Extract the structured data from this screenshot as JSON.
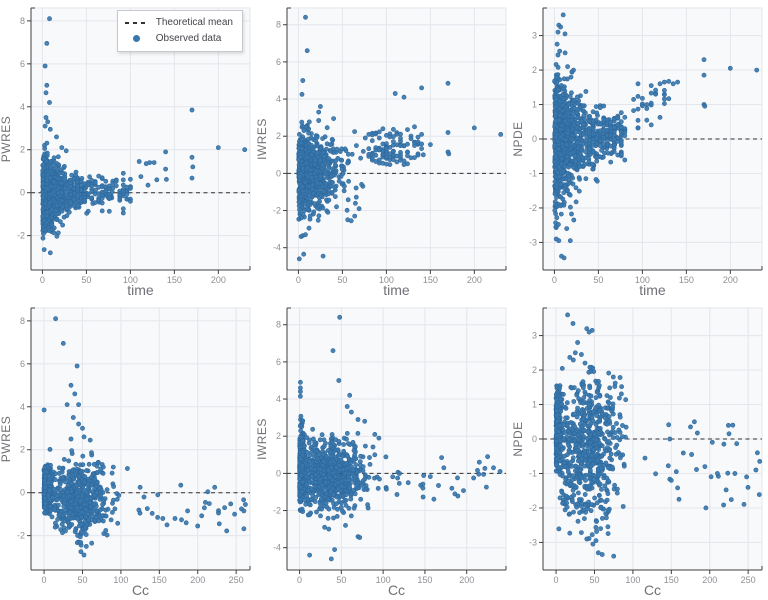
{
  "legend": {
    "position": "top-right-of-first-plot",
    "items": [
      {
        "label": "Theoretical mean",
        "type": "dash"
      },
      {
        "label": "Observed data",
        "type": "dot"
      }
    ]
  },
  "style": {
    "marker_fill": "#3878ad",
    "marker_stroke": "#2e679c",
    "marker_radius": 2.1,
    "panel_bg": "#f8f9fb",
    "panel_border": "#e4e6eb",
    "grid": "#e4e6eb",
    "axis": "#3f3f41",
    "tick_text": "#8f8f95",
    "axis_title_text": "#707076",
    "dash_line": "#2e2e30",
    "legend_border": "#c7c9cf",
    "legend_text": "#43434a"
  },
  "chart_data": [
    {
      "type": "scatter",
      "xlabel": "time",
      "ylabel": "PWRES",
      "xlim": [
        -13,
        236
      ],
      "ylim": [
        -3.6,
        8.6
      ],
      "xticks": [
        0,
        50,
        100,
        150,
        200
      ],
      "yticks": [
        -2,
        0,
        2,
        4,
        6,
        8
      ],
      "hline": 0,
      "grid": true,
      "seed": 11,
      "clusters": [
        {
          "n": 900,
          "x": [
            "exp",
            13
          ],
          "xmin": 0.3,
          "xmax": 104,
          "ycenter": -0.08,
          "ysd": 0.75,
          "ydecay": 36,
          "ysdmin": 0.15,
          "yclip": [
            -2.6,
            2.95
          ]
        },
        {
          "n": 120,
          "x": [
            "uniform",
            30,
            102
          ],
          "xquant": 4,
          "ycenter": 0.05,
          "ysd": 0.38,
          "yclip": [
            -0.95,
            1.25
          ]
        }
      ],
      "points": [
        [
          8,
          8.1
        ],
        [
          5,
          6.95
        ],
        [
          3,
          5.9
        ],
        [
          5,
          5.0
        ],
        [
          4,
          4.65
        ],
        [
          8,
          4.2
        ],
        [
          4,
          3.5
        ],
        [
          6,
          3.3
        ],
        [
          3,
          3.1
        ],
        [
          9,
          2.95
        ],
        [
          16,
          2.6
        ],
        [
          22,
          2.1
        ],
        [
          27,
          1.95
        ],
        [
          2,
          -2.65
        ],
        [
          9,
          -2.8
        ],
        [
          110,
          1.45
        ],
        [
          112,
          0.75
        ],
        [
          118,
          1.35
        ],
        [
          120,
          0.35
        ],
        [
          122,
          1.4
        ],
        [
          127,
          1.4
        ],
        [
          130,
          0.6
        ],
        [
          140,
          1.9
        ],
        [
          140,
          1.1
        ],
        [
          141,
          0.62
        ],
        [
          170,
          3.85
        ],
        [
          170,
          1.65
        ],
        [
          171,
          1.2
        ],
        [
          170,
          0.68
        ],
        [
          200,
          2.1
        ],
        [
          230,
          2.0
        ]
      ]
    },
    {
      "type": "scatter",
      "xlabel": "time",
      "ylabel": "IWRES",
      "xlim": [
        -13,
        236
      ],
      "ylim": [
        -5.2,
        8.9
      ],
      "xticks": [
        0,
        50,
        100,
        150,
        200
      ],
      "yticks": [
        -4,
        -2,
        0,
        2,
        4,
        6,
        8
      ],
      "hline": 0,
      "grid": true,
      "seed": 22,
      "clusters": [
        {
          "n": 950,
          "x": [
            "exp",
            15
          ],
          "xmin": 0.3,
          "xmax": 76,
          "ycenter": 0.05,
          "ysd": 0.98,
          "yclip": [
            -2.55,
            3.05
          ]
        },
        {
          "n": 80,
          "x": [
            "uniform",
            76,
            140
          ],
          "xquant": 4,
          "ycenter": 1.3,
          "ysd": 0.62,
          "yclip": [
            0.45,
            2.6
          ]
        },
        {
          "n": 26,
          "x": [
            "uniform",
            80,
            130
          ],
          "xquant": 4,
          "ycenter": 0.85,
          "ysd": 0.3,
          "yclip": [
            0.45,
            1.5
          ]
        }
      ],
      "points": [
        [
          8,
          8.4
        ],
        [
          10,
          6.6
        ],
        [
          5,
          5.0
        ],
        [
          4,
          4.25
        ],
        [
          25,
          3.6
        ],
        [
          23,
          3.3
        ],
        [
          40,
          2.95
        ],
        [
          1,
          -4.6
        ],
        [
          6,
          -4.35
        ],
        [
          28,
          -4.45
        ],
        [
          3,
          -3.4
        ],
        [
          5,
          -3.35
        ],
        [
          8,
          -3.3
        ],
        [
          12,
          -2.95
        ],
        [
          56,
          -2.5
        ],
        [
          60,
          -2.55
        ],
        [
          64,
          -2.3
        ],
        [
          69,
          -1.9
        ],
        [
          110,
          4.3
        ],
        [
          120,
          4.1
        ],
        [
          140,
          4.6
        ],
        [
          170,
          4.85
        ],
        [
          140,
          2.1
        ],
        [
          142,
          1.0
        ],
        [
          150,
          1.55
        ],
        [
          170,
          2.2
        ],
        [
          170,
          1.15
        ],
        [
          171,
          1.05
        ],
        [
          200,
          2.45
        ],
        [
          230,
          2.1
        ]
      ]
    },
    {
      "type": "scatter",
      "xlabel": "time",
      "ylabel": "NPDE",
      "xlim": [
        -13,
        236
      ],
      "ylim": [
        -3.8,
        3.8
      ],
      "xticks": [
        0,
        50,
        100,
        150,
        200
      ],
      "yticks": [
        -3,
        -2,
        -1,
        0,
        1,
        2,
        3
      ],
      "hline": 0,
      "grid": true,
      "seed": 33,
      "clusters": [
        {
          "n": 1000,
          "x": [
            "exp",
            14
          ],
          "xmin": 0.3,
          "xmax": 82,
          "ycenter": -0.02,
          "ysd": 0.8,
          "ydecay": 45,
          "ysdmin": 0.18,
          "yclip": [
            -2.75,
            2.5
          ]
        },
        {
          "n": 130,
          "x": [
            "uniform",
            38,
            82
          ],
          "xquant": 4,
          "ycenter": 0.12,
          "ysd": 0.42,
          "yclip": [
            -0.75,
            1.0
          ]
        },
        {
          "n": 26,
          "x": [
            "uniform",
            85,
            132
          ],
          "xquant": 5,
          "ycenter": 0.95,
          "ysd": 0.4,
          "yclip": [
            0.3,
            1.7
          ]
        }
      ],
      "points": [
        [
          10,
          3.6
        ],
        [
          5,
          3.3
        ],
        [
          7,
          3.25
        ],
        [
          4,
          3.1
        ],
        [
          12,
          3.05
        ],
        [
          3,
          2.75
        ],
        [
          6,
          2.55
        ],
        [
          15,
          2.1
        ],
        [
          20,
          1.95
        ],
        [
          8,
          -3.4
        ],
        [
          11,
          -3.45
        ],
        [
          5,
          -2.95
        ],
        [
          2,
          -2.9
        ],
        [
          18,
          -2.95
        ],
        [
          14,
          -2.6
        ],
        [
          22,
          -2.35
        ],
        [
          90,
          1.15
        ],
        [
          95,
          0.32
        ],
        [
          110,
          1.55
        ],
        [
          115,
          1.3
        ],
        [
          120,
          1.6
        ],
        [
          125,
          1.65
        ],
        [
          135,
          1.6
        ],
        [
          140,
          1.65
        ],
        [
          170,
          2.3
        ],
        [
          170,
          1.85
        ],
        [
          170,
          1.0
        ],
        [
          171,
          0.95
        ],
        [
          200,
          2.05
        ],
        [
          230,
          2.0
        ]
      ]
    },
    {
      "type": "scatter",
      "xlabel": "Cc",
      "ylabel": "PWRES",
      "xlim": [
        -17,
        268
      ],
      "ylim": [
        -3.6,
        8.6
      ],
      "xticks": [
        0,
        50,
        100,
        150,
        200,
        250
      ],
      "yticks": [
        -2,
        0,
        2,
        4,
        6,
        8
      ],
      "hline": 0,
      "grid": true,
      "seed": 44,
      "clusters": [
        {
          "n": 420,
          "x": [
            "absnormal",
            4.5
          ],
          "xmin": 0,
          "xmax": 13,
          "ycenter": 0.12,
          "ysd": 0.55,
          "yclip": [
            -1.0,
            1.3
          ]
        },
        {
          "n": 520,
          "x": [
            "normal",
            45,
            22
          ],
          "xmin": 4,
          "xmax": 112,
          "ycenter": -0.35,
          "ysd": 0.82,
          "yclip": [
            -2.45,
            2.5
          ]
        },
        {
          "n": 20,
          "x": [
            "uniform",
            115,
            265
          ],
          "ycenter": -0.85,
          "ysd": 0.55,
          "yclip": [
            -1.8,
            0.4
          ]
        }
      ],
      "points": [
        [
          15,
          8.1
        ],
        [
          25,
          6.95
        ],
        [
          43,
          5.9
        ],
        [
          35,
          5.0
        ],
        [
          40,
          4.6
        ],
        [
          45,
          4.1
        ],
        [
          30,
          4.1
        ],
        [
          0,
          3.85
        ],
        [
          38,
          3.5
        ],
        [
          45,
          3.2
        ],
        [
          50,
          3.0
        ],
        [
          52,
          2.6
        ],
        [
          60,
          2.45
        ],
        [
          35,
          2.5
        ],
        [
          48,
          -2.75
        ],
        [
          52,
          -2.9
        ],
        [
          55,
          -2.5
        ],
        [
          62,
          -2.35
        ],
        [
          125,
          0.25
        ],
        [
          130,
          -0.2
        ],
        [
          148,
          -0.1
        ],
        [
          160,
          -1.5
        ],
        [
          178,
          0.35
        ],
        [
          185,
          -1.4
        ],
        [
          200,
          -1.55
        ],
        [
          210,
          -0.45
        ],
        [
          222,
          0.25
        ],
        [
          228,
          -1.45
        ],
        [
          235,
          -0.7
        ],
        [
          248,
          -1.0
        ],
        [
          260,
          -0.85
        ],
        [
          262,
          -0.55
        ]
      ]
    },
    {
      "type": "scatter",
      "xlabel": "Cc",
      "ylabel": "IWRES",
      "xlim": [
        -15,
        247
      ],
      "ylim": [
        -5.2,
        8.9
      ],
      "xticks": [
        0,
        50,
        100,
        150,
        200
      ],
      "yticks": [
        -4,
        -2,
        0,
        2,
        4,
        6,
        8
      ],
      "hline": 0,
      "grid": true,
      "seed": 55,
      "clusters": [
        {
          "n": 300,
          "x": [
            "absnormal",
            3
          ],
          "xmin": 0,
          "xmax": 8,
          "ycenter": 0.35,
          "ysd": 1.05,
          "yclip": [
            -2.1,
            3.1
          ]
        },
        {
          "n": 680,
          "x": [
            "normal",
            35,
            22
          ],
          "xmin": 2,
          "xmax": 100,
          "ycenter": -0.1,
          "ysd": 0.95,
          "yclip": [
            -2.6,
            2.6
          ]
        },
        {
          "n": 30,
          "x": [
            "uniform",
            100,
            238
          ],
          "ycenter": -0.45,
          "ysd": 0.5,
          "yclip": [
            -1.5,
            0.9
          ]
        }
      ],
      "points": [
        [
          48,
          8.4
        ],
        [
          40,
          6.6
        ],
        [
          47,
          5.0
        ],
        [
          1,
          4.9
        ],
        [
          1,
          4.6
        ],
        [
          1,
          4.4
        ],
        [
          1,
          4.15
        ],
        [
          60,
          4.2
        ],
        [
          57,
          3.6
        ],
        [
          62,
          3.3
        ],
        [
          70,
          2.9
        ],
        [
          78,
          2.8
        ],
        [
          12,
          -4.4
        ],
        [
          38,
          -4.6
        ],
        [
          42,
          -4.1
        ],
        [
          70,
          -3.4
        ],
        [
          72,
          -3.45
        ],
        [
          35,
          -3.0
        ],
        [
          30,
          -2.9
        ],
        [
          55,
          -2.8
        ],
        [
          90,
          2.1
        ],
        [
          95,
          1.9
        ],
        [
          170,
          0.85
        ],
        [
          225,
          0.9
        ],
        [
          215,
          0.6
        ],
        [
          232,
          0.3
        ],
        [
          240,
          0.1
        ]
      ]
    },
    {
      "type": "scatter",
      "xlabel": "Cc",
      "ylabel": "NPDE",
      "xlim": [
        -17,
        268
      ],
      "ylim": [
        -3.8,
        3.8
      ],
      "xticks": [
        0,
        50,
        100,
        150,
        200,
        250
      ],
      "yticks": [
        -3,
        -2,
        -1,
        0,
        1,
        2,
        3
      ],
      "hline": 0,
      "grid": true,
      "seed": 66,
      "clusters": [
        {
          "n": 360,
          "x": [
            "absnormal",
            3
          ],
          "xmin": 0,
          "xmax": 8,
          "ycenter": 0.3,
          "ysd": 0.62,
          "yclip": [
            -0.95,
            1.55
          ]
        },
        {
          "n": 640,
          "x": [
            "normal",
            42,
            22
          ],
          "xmin": 3,
          "xmax": 105,
          "ycenter": -0.3,
          "ysd": 1.12,
          "yclip": [
            -2.9,
            2.45
          ]
        },
        {
          "n": 26,
          "x": [
            "uniform",
            108,
            265
          ],
          "ycenter": -0.8,
          "ysd": 0.72,
          "yclip": [
            -2.05,
            0.5
          ]
        }
      ],
      "points": [
        [
          15,
          3.6
        ],
        [
          22,
          3.35
        ],
        [
          40,
          3.2
        ],
        [
          47,
          3.15
        ],
        [
          43,
          3.1
        ],
        [
          28,
          2.8
        ],
        [
          25,
          2.5
        ],
        [
          33,
          2.45
        ],
        [
          55,
          -3.3
        ],
        [
          60,
          -3.35
        ],
        [
          75,
          -3.4
        ],
        [
          48,
          -3.05
        ],
        [
          52,
          -2.95
        ],
        [
          40,
          -2.9
        ],
        [
          58,
          -2.6
        ],
        [
          148,
          0.0
        ],
        [
          150,
          -1.2
        ],
        [
          160,
          -1.75
        ],
        [
          175,
          0.35
        ],
        [
          180,
          0.5
        ],
        [
          195,
          -2.0
        ],
        [
          210,
          -1.0
        ],
        [
          225,
          0.15
        ],
        [
          230,
          0.4
        ],
        [
          248,
          -1.1
        ],
        [
          260,
          -0.9
        ],
        [
          265,
          -0.65
        ],
        [
          262,
          -0.4
        ]
      ]
    }
  ]
}
